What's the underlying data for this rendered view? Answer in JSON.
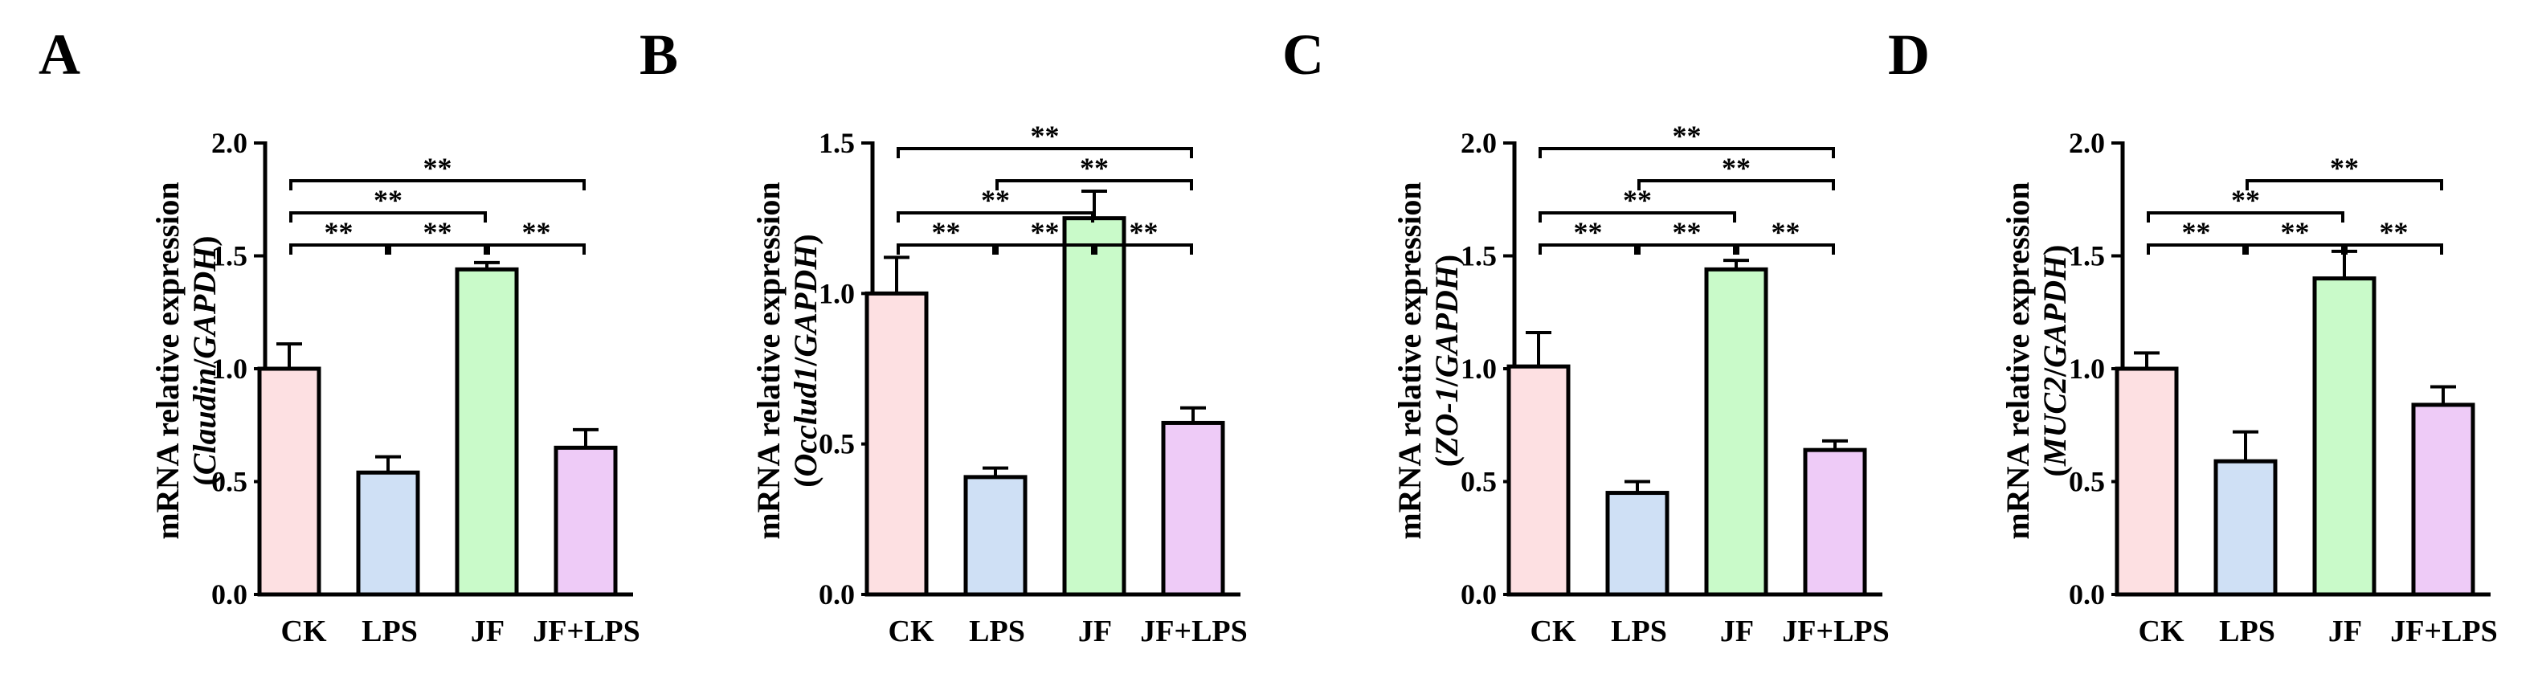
{
  "chart_data": [
    {
      "panel": "A",
      "type": "bar",
      "categories": [
        "CK",
        "LPS",
        "JF",
        "JF+LPS"
      ],
      "values": [
        1.0,
        0.54,
        1.44,
        0.65
      ],
      "errors": [
        0.11,
        0.07,
        0.03,
        0.08
      ],
      "ylabel_prefix": "mRNA relative expression",
      "ylabel_gene": "Claudin",
      "ylabel_ref": "GAPDH",
      "ylim": [
        0,
        2.0
      ],
      "yticks": [
        0.0,
        0.5,
        1.0,
        1.5,
        2.0
      ],
      "tick_labels": [
        "0.0",
        "0.5",
        "1.0",
        "1.5",
        "2.0"
      ],
      "significance": [
        {
          "from": 0,
          "to": 1,
          "label": "**",
          "level": 0
        },
        {
          "from": 1,
          "to": 2,
          "label": "**",
          "level": 0
        },
        {
          "from": 2,
          "to": 3,
          "label": "**",
          "level": 0
        },
        {
          "from": 0,
          "to": 2,
          "label": "**",
          "level": 1
        },
        {
          "from": 0,
          "to": 3,
          "label": "**",
          "level": 2
        }
      ]
    },
    {
      "panel": "B",
      "type": "bar",
      "categories": [
        "CK",
        "LPS",
        "JF",
        "JF+LPS"
      ],
      "values": [
        1.0,
        0.39,
        1.25,
        0.57
      ],
      "errors": [
        0.12,
        0.03,
        0.09,
        0.05
      ],
      "ylabel_prefix": "mRNA relative expression",
      "ylabel_gene": "Occlud1",
      "ylabel_ref": "GAPDH",
      "ylim": [
        0,
        1.5
      ],
      "yticks": [
        0.0,
        0.5,
        1.0,
        1.5
      ],
      "tick_labels": [
        "0.0",
        "0.5",
        "1.0",
        "1.5"
      ],
      "significance": [
        {
          "from": 0,
          "to": 1,
          "label": "**",
          "level": 0
        },
        {
          "from": 1,
          "to": 2,
          "label": "**",
          "level": 0
        },
        {
          "from": 2,
          "to": 3,
          "label": "**",
          "level": 0
        },
        {
          "from": 0,
          "to": 2,
          "label": "**",
          "level": 1
        },
        {
          "from": 1,
          "to": 3,
          "label": "**",
          "level": 2
        },
        {
          "from": 0,
          "to": 3,
          "label": "**",
          "level": 3
        }
      ]
    },
    {
      "panel": "C",
      "type": "bar",
      "categories": [
        "CK",
        "LPS",
        "JF",
        "JF+LPS"
      ],
      "values": [
        1.01,
        0.45,
        1.44,
        0.64
      ],
      "errors": [
        0.15,
        0.05,
        0.04,
        0.04
      ],
      "ylabel_prefix": "mRNA relative expression",
      "ylabel_gene": "ZO-1",
      "ylabel_ref": "GAPDH",
      "ylim": [
        0,
        2.0
      ],
      "yticks": [
        0.0,
        0.5,
        1.0,
        1.5,
        2.0
      ],
      "tick_labels": [
        "0.0",
        "0.5",
        "1.0",
        "1.5",
        "2.0"
      ],
      "significance": [
        {
          "from": 0,
          "to": 1,
          "label": "**",
          "level": 0
        },
        {
          "from": 1,
          "to": 2,
          "label": "**",
          "level": 0
        },
        {
          "from": 2,
          "to": 3,
          "label": "**",
          "level": 0
        },
        {
          "from": 0,
          "to": 2,
          "label": "**",
          "level": 1
        },
        {
          "from": 1,
          "to": 3,
          "label": "**",
          "level": 2
        },
        {
          "from": 0,
          "to": 3,
          "label": "**",
          "level": 3
        }
      ]
    },
    {
      "panel": "D",
      "type": "bar",
      "categories": [
        "CK",
        "LPS",
        "JF",
        "JF+LPS"
      ],
      "values": [
        1.0,
        0.59,
        1.4,
        0.84
      ],
      "errors": [
        0.07,
        0.13,
        0.12,
        0.08
      ],
      "ylabel_prefix": "mRNA relative expression",
      "ylabel_gene": "MUC2",
      "ylabel_ref": "GAPDH",
      "ylim": [
        0,
        2.0
      ],
      "yticks": [
        0.0,
        0.5,
        1.0,
        1.5,
        2.0
      ],
      "tick_labels": [
        "0.0",
        "0.5",
        "1.0",
        "1.5",
        "2.0"
      ],
      "significance": [
        {
          "from": 0,
          "to": 1,
          "label": "**",
          "level": 0
        },
        {
          "from": 1,
          "to": 2,
          "label": "**",
          "level": 0
        },
        {
          "from": 2,
          "to": 3,
          "label": "**",
          "level": 0
        },
        {
          "from": 0,
          "to": 2,
          "label": "**",
          "level": 1
        },
        {
          "from": 1,
          "to": 3,
          "label": "**",
          "level": 2
        }
      ]
    }
  ],
  "colors": {
    "CK": "#fde0e2",
    "LPS": "#cfe0f5",
    "JF": "#c9fac9",
    "JF+LPS": "#eecbf7",
    "stroke": "#000000"
  }
}
